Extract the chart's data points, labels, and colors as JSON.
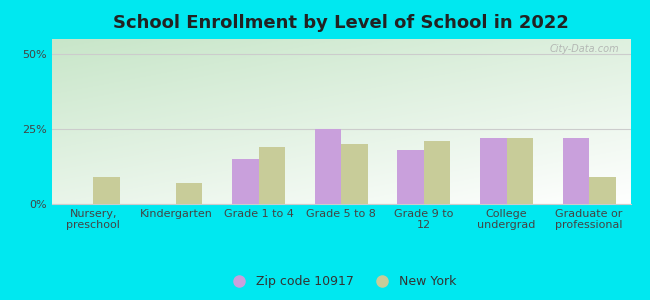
{
  "title": "School Enrollment by Level of School in 2022",
  "categories": [
    "Nursery,\npreschool",
    "Kindergarten",
    "Grade 1 to 4",
    "Grade 5 to 8",
    "Grade 9 to\n12",
    "College\nundergrad",
    "Graduate or\nprofessional"
  ],
  "zip_values": [
    0,
    0,
    15,
    25,
    18,
    22,
    22
  ],
  "ny_values": [
    9,
    7,
    19,
    20,
    21,
    22,
    9
  ],
  "zip_color": "#c9a0dc",
  "ny_color": "#c8cc99",
  "background_outer": "#00e8f0",
  "ylim": [
    0,
    55
  ],
  "yticks": [
    0,
    25,
    50
  ],
  "ytick_labels": [
    "0%",
    "25%",
    "50%"
  ],
  "bar_width": 0.32,
  "legend_zip": "Zip code 10917",
  "legend_ny": "New York",
  "title_fontsize": 13,
  "tick_fontsize": 8,
  "watermark": "City-Data.com",
  "grad_top_color": "#cce8cc",
  "grad_bottom_color": "#f0fdf0"
}
